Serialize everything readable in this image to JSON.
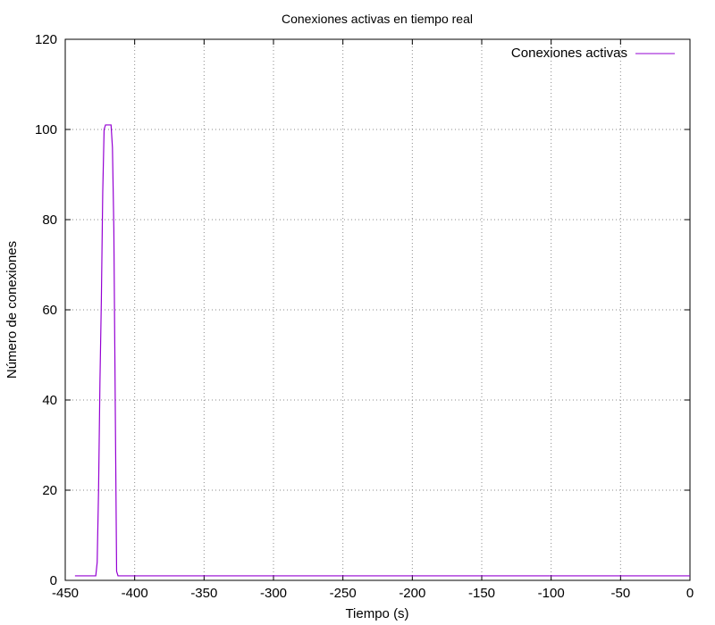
{
  "chart_data": {
    "type": "line",
    "title": "Conexiones activas en tiempo real",
    "xlabel": "Tiempo (s)",
    "ylabel": "Número de conexiones",
    "xlim": [
      -450,
      0
    ],
    "ylim": [
      0,
      120
    ],
    "x_ticks": [
      -450,
      -400,
      -350,
      -300,
      -250,
      -200,
      -150,
      -100,
      -50,
      0
    ],
    "y_ticks": [
      0,
      20,
      40,
      60,
      80,
      100,
      120
    ],
    "grid": true,
    "legend_position": "top-right",
    "series": [
      {
        "name": "Conexiones activas",
        "color": "#9400d3",
        "x": [
          -443,
          -428,
          -427,
          -426,
          -425,
          -424,
          -423,
          -422,
          -421,
          -420,
          -419,
          -418,
          -417,
          -416,
          -415,
          -414,
          -413,
          -412,
          -411,
          -410,
          0
        ],
        "y": [
          1,
          1,
          4,
          20,
          44,
          62,
          86,
          100,
          101,
          101,
          101,
          101,
          101,
          96,
          78,
          40,
          2,
          1,
          1,
          1,
          1
        ]
      }
    ]
  }
}
